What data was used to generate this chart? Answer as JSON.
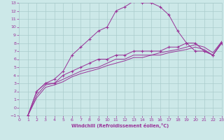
{
  "bg_color": "#cce8e8",
  "grid_color": "#aacccc",
  "line_color": "#993399",
  "xlabel": "Windchill (Refroidissement éolien,°C)",
  "xlabel_color": "#993399",
  "tick_color": "#993399",
  "xlim": [
    0,
    23
  ],
  "ylim": [
    -1,
    13
  ],
  "xticks": [
    0,
    1,
    2,
    3,
    4,
    5,
    6,
    7,
    8,
    9,
    10,
    11,
    12,
    13,
    14,
    15,
    16,
    17,
    18,
    19,
    20,
    21,
    22,
    23
  ],
  "yticks": [
    -1,
    0,
    1,
    2,
    3,
    4,
    5,
    6,
    7,
    8,
    9,
    10,
    11,
    12,
    13
  ],
  "line1_x": [
    1,
    2,
    3,
    4,
    5,
    6,
    7,
    8,
    9,
    10,
    11,
    12,
    13,
    14,
    15,
    16,
    17,
    18,
    19,
    20,
    21,
    22,
    23
  ],
  "line1_y": [
    -1,
    2,
    3,
    3.5,
    4.5,
    6.5,
    7.5,
    8.5,
    9.5,
    10,
    12,
    12.5,
    13.2,
    13,
    13,
    12.5,
    11.5,
    9.5,
    8,
    7,
    7,
    6.5,
    8
  ],
  "line2_x": [
    1,
    2,
    3,
    4,
    5,
    6,
    7,
    8,
    9,
    10,
    11,
    12,
    13,
    14,
    15,
    16,
    17,
    18,
    19,
    20,
    21,
    22,
    23
  ],
  "line2_y": [
    -1,
    2,
    3,
    3,
    4,
    4.5,
    5,
    5.5,
    6,
    6,
    6.5,
    6.5,
    7,
    7,
    7,
    7,
    7.5,
    7.5,
    8,
    8,
    7,
    6.5,
    8
  ],
  "line3_x": [
    1,
    2,
    3,
    4,
    5,
    6,
    7,
    8,
    9,
    10,
    11,
    12,
    13,
    14,
    15,
    16,
    17,
    18,
    19,
    20,
    21,
    22,
    23
  ],
  "line3_y": [
    -1,
    1.5,
    2.8,
    3,
    3.5,
    4,
    4.5,
    4.8,
    5,
    5.5,
    6,
    6,
    6.5,
    6.5,
    6.5,
    6.8,
    7,
    7.2,
    7.5,
    7.8,
    7.5,
    6.8,
    8.2
  ],
  "line4_x": [
    1,
    2,
    3,
    4,
    5,
    6,
    7,
    8,
    9,
    10,
    11,
    12,
    13,
    14,
    15,
    16,
    17,
    18,
    19,
    20,
    21,
    22,
    23
  ],
  "line4_y": [
    -1,
    1.2,
    2.5,
    2.8,
    3.2,
    3.8,
    4.2,
    4.5,
    4.8,
    5.2,
    5.5,
    5.8,
    6.2,
    6.2,
    6.5,
    6.5,
    6.8,
    7,
    7.2,
    7.5,
    7.2,
    6.5,
    8.2
  ]
}
